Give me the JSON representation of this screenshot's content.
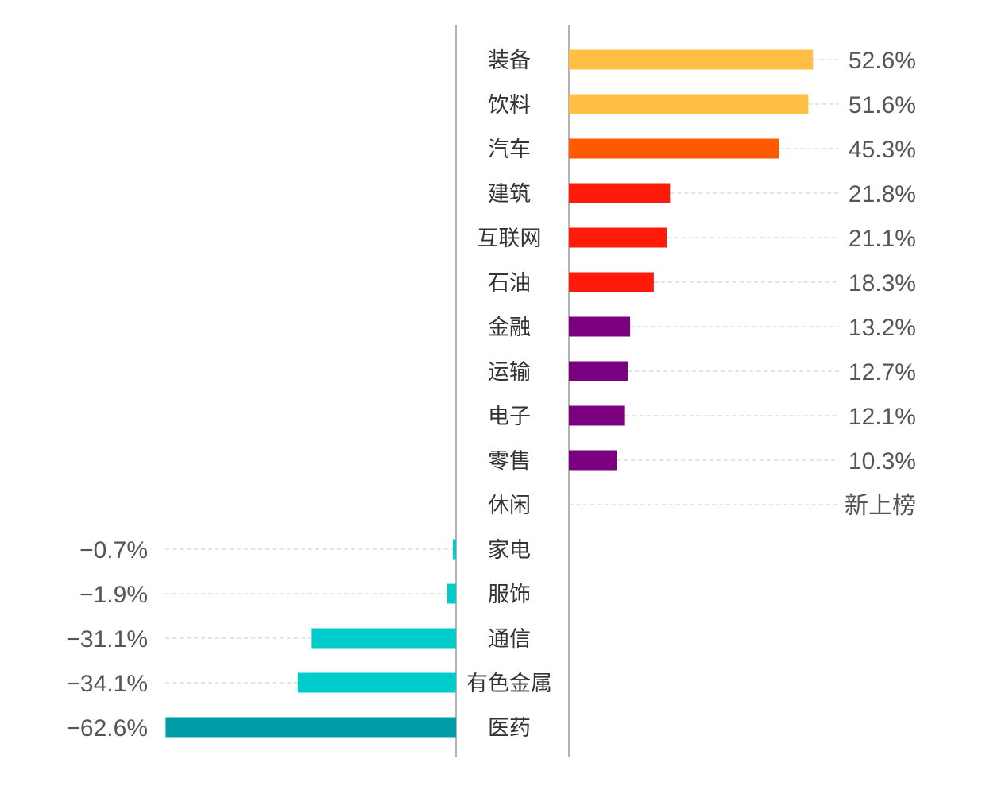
{
  "chart_data": {
    "type": "bar",
    "orientation": "diverging-horizontal",
    "categories": [
      "装备",
      "饮料",
      "汽车",
      "建筑",
      "互联网",
      "石油",
      "金融",
      "运输",
      "电子",
      "零售",
      "休闲",
      "家电",
      "服饰",
      "通信",
      "有色金属",
      "医药"
    ],
    "values": [
      52.6,
      51.6,
      45.3,
      21.8,
      21.1,
      18.3,
      13.2,
      12.7,
      12.1,
      10.3,
      null,
      -0.7,
      -1.9,
      -31.1,
      -34.1,
      -62.6
    ],
    "value_labels": [
      "52.6%",
      "51.6%",
      "45.3%",
      "21.8%",
      "21.1%",
      "18.3%",
      "13.2%",
      "12.7%",
      "12.1%",
      "10.3%",
      "新上榜",
      "−0.7%",
      "−1.9%",
      "−31.1%",
      "−34.1%",
      "−62.6%"
    ],
    "colors": [
      "#FFBF45",
      "#FFBF45",
      "#FF5A00",
      "#FF1A0A",
      "#FF1A0A",
      "#FF1A0A",
      "#7B0080",
      "#7B0080",
      "#7B0080",
      "#7B0080",
      "#FFFFFF",
      "#00CCCC",
      "#00CCCC",
      "#00CCCC",
      "#00CCCC",
      "#009DA6"
    ],
    "title": "",
    "xlabel": "",
    "ylabel": "",
    "grid": false,
    "legend": "none"
  }
}
